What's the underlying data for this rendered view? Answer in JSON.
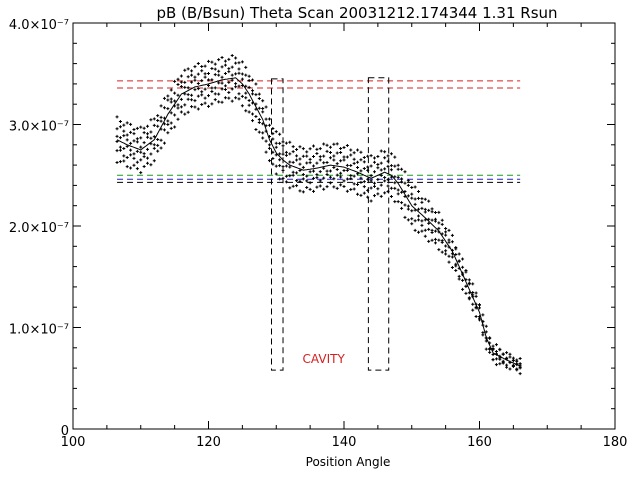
{
  "chart_data": {
    "type": "scatter",
    "title": "pB (B/Bsun) Theta Scan 20031212.174344 1.31 Rsun",
    "xlabel": "Position Angle",
    "ylabel": "",
    "xlim": [
      100,
      180
    ],
    "ylim": [
      0,
      4e-07
    ],
    "x_ticks": [
      {
        "value": 100,
        "label": "100"
      },
      {
        "value": 120,
        "label": "120"
      },
      {
        "value": 140,
        "label": "140"
      },
      {
        "value": 160,
        "label": "160"
      },
      {
        "value": 180,
        "label": "180"
      }
    ],
    "y_ticks": [
      {
        "value": 0,
        "label": "0"
      },
      {
        "value": 1e-07,
        "label": "1.0×10⁻⁷"
      },
      {
        "value": 2e-07,
        "label": "2.0×10⁻⁷"
      },
      {
        "value": 3e-07,
        "label": "3.0×10⁻⁷"
      },
      {
        "value": 4e-07,
        "label": "4.0×10⁻⁷"
      }
    ],
    "colors": {
      "data": "#000000",
      "red_lines": "#d62020",
      "green_line": "#1a9a1a",
      "blue_line": "#2020c8",
      "boxes": "#000000",
      "annotation": "#d62020"
    },
    "smooth_curve": {
      "x": [
        106.5,
        108,
        110,
        112,
        114,
        116,
        118,
        120,
        122,
        124,
        125,
        126,
        128,
        129,
        130,
        131,
        132,
        134,
        136,
        138,
        140,
        142,
        144,
        145,
        146,
        147,
        148,
        150,
        152,
        154,
        156,
        158,
        160,
        161,
        162,
        164,
        166
      ],
      "y": [
        2.85e-07,
        2.8e-07,
        2.75e-07,
        2.85e-07,
        3.1e-07,
        3.3e-07,
        3.37e-07,
        3.4e-07,
        3.44e-07,
        3.46e-07,
        3.4e-07,
        3.3e-07,
        3.05e-07,
        2.85e-07,
        2.72e-07,
        2.65e-07,
        2.6e-07,
        2.55e-07,
        2.57e-07,
        2.6e-07,
        2.58e-07,
        2.53e-07,
        2.47e-07,
        2.5e-07,
        2.53e-07,
        2.5e-07,
        2.42e-07,
        2.2e-07,
        2.08e-07,
        1.95e-07,
        1.75e-07,
        1.45e-07,
        1.15e-07,
        9e-08,
        7.5e-08,
        6.8e-08,
        6.2e-08
      ]
    },
    "scatter_offsets": [
      -2e-08,
      -1.1e-08,
      -4e-09,
      5e-09,
      1.2e-08,
      2e-08
    ],
    "horizontal_lines": [
      {
        "name": "red-upper",
        "y": 3.43e-07,
        "color": "#d62020",
        "x": [
          106.5,
          166
        ]
      },
      {
        "name": "red-lower",
        "y": 3.36e-07,
        "color": "#d62020",
        "x": [
          106.5,
          166
        ]
      },
      {
        "name": "green",
        "y": 2.5e-07,
        "color": "#1a9a1a",
        "x": [
          106.5,
          166
        ]
      },
      {
        "name": "blue",
        "y": 2.46e-07,
        "color": "#2020c8",
        "x": [
          106.5,
          166
        ]
      },
      {
        "name": "black",
        "y": 2.43e-07,
        "color": "#000000",
        "x": [
          106.5,
          166
        ]
      }
    ],
    "boxes": [
      {
        "x0": 129.3,
        "x1": 131.0,
        "y0": 5.8e-08,
        "y1": 3.45e-07
      },
      {
        "x0": 143.6,
        "x1": 146.6,
        "y0": 5.8e-08,
        "y1": 3.46e-07
      }
    ],
    "annotations": [
      {
        "text": "CAVITY",
        "x": 137,
        "y": 6.5e-08
      }
    ]
  }
}
